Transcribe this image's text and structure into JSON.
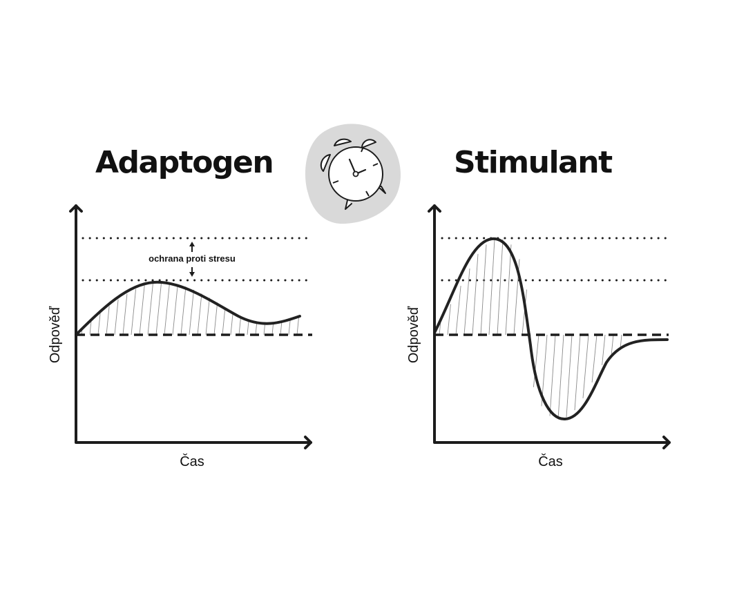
{
  "left_panel": {
    "title": "Adaptogen",
    "ylabel": "Odpověď",
    "xlabel": "Čas",
    "annotation": "ochrana proti stresu"
  },
  "right_panel": {
    "title": "Stimulant",
    "ylabel": "Odpověď",
    "xlabel": "Čas"
  },
  "clock": {
    "icon": "alarm-clock-icon"
  },
  "colors": {
    "ink": "#1c1c1c",
    "hatch": "#8a8a8a",
    "clock_blob": "#d9d9d9"
  }
}
